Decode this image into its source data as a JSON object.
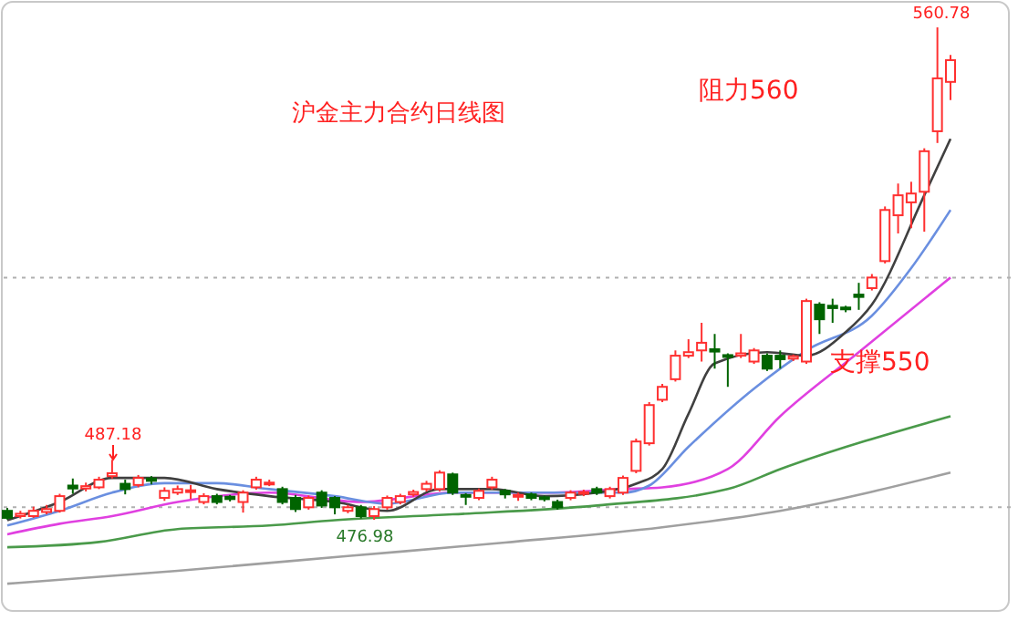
{
  "chart_data": {
    "type": "candlestick",
    "title": "沪金主力合约日线图",
    "annotations": [
      "阻力560",
      "支撑550",
      "560.78",
      "487.18",
      "476.98"
    ],
    "categories": [
      null,
      null,
      null,
      null,
      null,
      null,
      null,
      null,
      null,
      null,
      null,
      null,
      null,
      null,
      null,
      null,
      null,
      null,
      null,
      null,
      null,
      null,
      null,
      null,
      null,
      null,
      null,
      null,
      null,
      null,
      null,
      null,
      null,
      null,
      null,
      null,
      null,
      null,
      null,
      null,
      null,
      null,
      null,
      null,
      null,
      null,
      null,
      null,
      null,
      null,
      null,
      null,
      null,
      null,
      null,
      null,
      null,
      null,
      null,
      null,
      null,
      null,
      null,
      null,
      null,
      null,
      null,
      null,
      null,
      null,
      null,
      null,
      null
    ],
    "ohlc": [
      [
        478.5,
        479.0,
        477.0,
        477.3
      ],
      [
        477.6,
        478.5,
        477.2,
        478.0
      ],
      [
        477.6,
        479.2,
        477.3,
        478.5
      ],
      [
        478.3,
        479.5,
        477.9,
        478.8
      ],
      [
        478.5,
        481.4,
        478.2,
        481.0
      ],
      [
        482.8,
        484.0,
        481.4,
        482.3
      ],
      [
        482.3,
        483.3,
        481.8,
        482.7
      ],
      [
        482.5,
        484.3,
        482.2,
        483.8
      ],
      [
        484.4,
        487.18,
        484.0,
        484.9
      ],
      [
        483.1,
        483.8,
        481.3,
        482.2
      ],
      [
        482.9,
        484.6,
        482.5,
        484.1
      ],
      [
        484.0,
        484.4,
        483.0,
        483.6
      ],
      [
        480.7,
        482.5,
        480.2,
        481.9
      ],
      [
        481.6,
        482.8,
        481.2,
        482.2
      ],
      [
        481.7,
        482.9,
        480.5,
        482.0
      ],
      [
        480.0,
        481.5,
        479.6,
        481.0
      ],
      [
        481.0,
        481.4,
        479.6,
        480.0
      ],
      [
        480.9,
        481.2,
        480.1,
        480.5
      ],
      [
        480.0,
        482.0,
        478.2,
        481.6
      ],
      [
        482.5,
        484.3,
        482.1,
        483.8
      ],
      [
        483.0,
        483.8,
        482.7,
        483.3
      ],
      [
        482.2,
        482.6,
        479.6,
        480.0
      ],
      [
        480.7,
        481.2,
        478.3,
        478.8
      ],
      [
        479.1,
        481.1,
        478.7,
        480.7
      ],
      [
        481.6,
        482.0,
        479.0,
        479.4
      ],
      [
        480.7,
        481.0,
        477.9,
        479.1
      ],
      [
        478.5,
        479.5,
        478.1,
        479.1
      ],
      [
        479.1,
        479.5,
        477.2,
        477.6
      ],
      [
        477.6,
        479.3,
        476.98,
        478.8
      ],
      [
        479.1,
        481.1,
        478.7,
        480.7
      ],
      [
        480.0,
        481.4,
        479.6,
        481.0
      ],
      [
        481.3,
        482.1,
        480.9,
        481.7
      ],
      [
        482.2,
        483.6,
        481.8,
        483.1
      ],
      [
        482.2,
        485.4,
        481.8,
        485.0
      ],
      [
        484.7,
        485.0,
        481.2,
        481.6
      ],
      [
        481.2,
        481.5,
        479.5,
        480.9
      ],
      [
        480.7,
        482.3,
        480.3,
        481.9
      ],
      [
        482.5,
        484.3,
        482.1,
        483.8
      ],
      [
        481.9,
        482.2,
        480.6,
        481.3
      ],
      [
        480.9,
        481.6,
        480.2,
        481.2
      ],
      [
        481.3,
        481.6,
        480.3,
        480.7
      ],
      [
        480.8,
        481.1,
        480.1,
        480.5
      ],
      [
        480.0,
        480.4,
        478.7,
        479.1
      ],
      [
        480.7,
        482.0,
        480.3,
        481.6
      ],
      [
        481.4,
        482.1,
        481.0,
        481.7
      ],
      [
        482.2,
        482.6,
        481.2,
        481.6
      ],
      [
        481.0,
        482.6,
        480.6,
        482.2
      ],
      [
        481.6,
        484.5,
        481.2,
        484.1
      ],
      [
        485.3,
        490.8,
        484.9,
        490.3
      ],
      [
        490.0,
        497.0,
        489.6,
        496.5
      ],
      [
        497.4,
        500.1,
        497.0,
        499.6
      ],
      [
        500.9,
        505.8,
        500.5,
        504.9
      ],
      [
        504.9,
        507.7,
        504.5,
        505.5
      ],
      [
        505.8,
        510.5,
        503.9,
        507.1
      ],
      [
        506.0,
        508.6,
        502.7,
        505.6
      ],
      [
        505.0,
        505.3,
        499.6,
        504.7
      ],
      [
        504.9,
        508.6,
        504.5,
        505.3
      ],
      [
        503.9,
        506.2,
        503.5,
        505.8
      ],
      [
        504.9,
        505.3,
        502.3,
        502.7
      ],
      [
        504.9,
        505.8,
        502.7,
        504.3
      ],
      [
        504.4,
        505.1,
        504.0,
        504.8
      ],
      [
        503.9,
        514.6,
        503.5,
        514.2
      ],
      [
        513.6,
        514.0,
        508.6,
        511.1
      ],
      [
        513.4,
        514.6,
        510.5,
        513.0
      ],
      [
        513.1,
        513.4,
        512.3,
        512.8
      ],
      [
        515.3,
        517.3,
        512.7,
        514.9
      ],
      [
        516.4,
        518.8,
        516.0,
        518.2
      ],
      [
        521.0,
        530.3,
        520.6,
        529.7
      ],
      [
        528.8,
        534.2,
        525.7,
        532.2
      ],
      [
        531.0,
        534.5,
        526.6,
        532.5
      ],
      [
        532.8,
        540.2,
        526.0,
        539.7
      ],
      [
        543.1,
        560.78,
        541.1,
        552.1
      ],
      [
        551.5,
        556.1,
        548.4,
        555.2
      ]
    ],
    "series": [
      {
        "type": "line",
        "color": "#a0a0a0",
        "values": [
          466.1,
          null,
          null,
          null,
          null,
          null,
          null,
          null,
          null,
          null,
          null,
          null,
          null,
          468.3,
          null,
          null,
          null,
          null,
          null,
          null,
          null,
          null,
          null,
          null,
          null,
          null,
          470.8,
          null,
          null,
          null,
          null,
          null,
          null,
          null,
          null,
          null,
          null,
          null,
          473.1,
          null,
          null,
          null,
          null,
          null,
          null,
          null,
          null,
          null,
          null,
          null,
          475.7,
          null,
          null,
          null,
          null,
          null,
          null,
          null,
          null,
          478.5,
          null,
          null,
          null,
          null,
          null,
          null,
          null,
          null,
          null,
          null,
          null,
          null,
          485.0
        ]
      },
      {
        "type": "line",
        "color": "#4a9a4a",
        "values": [
          472.3,
          null,
          null,
          null,
          null,
          null,
          null,
          473.2,
          null,
          null,
          null,
          null,
          null,
          475.4,
          null,
          null,
          null,
          null,
          null,
          null,
          476.0,
          null,
          null,
          null,
          null,
          476.9,
          null,
          null,
          null,
          null,
          null,
          null,
          null,
          null,
          477.9,
          null,
          null,
          null,
          null,
          null,
          null,
          null,
          null,
          null,
          null,
          479.4,
          null,
          null,
          null,
          null,
          null,
          null,
          null,
          null,
          null,
          482.2,
          null,
          null,
          null,
          485.6,
          null,
          null,
          null,
          null,
          null,
          null,
          null,
          null,
          null,
          null,
          null,
          null,
          494.6
        ]
      },
      {
        "type": "line",
        "color": "#e040e0",
        "values": [
          474.5,
          null,
          null,
          null,
          476.3,
          null,
          null,
          null,
          477.6,
          null,
          null,
          null,
          null,
          480.0,
          null,
          null,
          null,
          null,
          null,
          null,
          481.6,
          null,
          null,
          null,
          null,
          null,
          null,
          480.0,
          null,
          null,
          null,
          null,
          null,
          null,
          481.6,
          null,
          null,
          null,
          null,
          null,
          null,
          481.6,
          null,
          null,
          null,
          null,
          null,
          482.2,
          null,
          null,
          482.5,
          null,
          null,
          null,
          null,
          485.6,
          null,
          null,
          null,
          494.6,
          null,
          null,
          null,
          null,
          null,
          505.5,
          null,
          null,
          null,
          null,
          null,
          null,
          518.2
        ]
      },
      {
        "type": "line",
        "color": "#6a8fe0",
        "values": [
          476.0,
          null,
          null,
          null,
          478.5,
          null,
          null,
          null,
          481.6,
          null,
          null,
          null,
          483.2,
          null,
          null,
          null,
          483.2,
          null,
          null,
          null,
          482.2,
          null,
          null,
          null,
          null,
          481.0,
          null,
          null,
          null,
          479.7,
          null,
          null,
          null,
          null,
          481.6,
          null,
          null,
          null,
          null,
          null,
          null,
          481.6,
          null,
          null,
          null,
          null,
          null,
          481.6,
          null,
          482.8,
          null,
          null,
          489.4,
          null,
          null,
          null,
          null,
          499.3,
          null,
          null,
          null,
          505.8,
          null,
          null,
          null,
          null,
          511.7,
          null,
          null,
          519.8,
          null,
          null,
          529.7
        ]
      },
      {
        "type": "line",
        "color": "#404040",
        "values": [
          476.9,
          null,
          null,
          null,
          480.0,
          null,
          null,
          null,
          484.1,
          null,
          null,
          null,
          484.1,
          null,
          null,
          null,
          482.2,
          null,
          null,
          null,
          481.0,
          null,
          null,
          null,
          null,
          480.0,
          null,
          null,
          null,
          478.5,
          null,
          null,
          null,
          482.2,
          null,
          null,
          null,
          482.2,
          null,
          null,
          null,
          481.0,
          null,
          null,
          null,
          481.6,
          null,
          null,
          483.1,
          null,
          485.6,
          null,
          495.0,
          null,
          503.6,
          null,
          null,
          null,
          505.5,
          null,
          null,
          504.9,
          null,
          null,
          508.9,
          null,
          513.6,
          null,
          null,
          null,
          532.2,
          null,
          541.8
        ]
      }
    ],
    "ref_lines": [
      {
        "axis": "y",
        "value": 518.2,
        "line_style": "dotted",
        "color": "#b0b0b0"
      },
      {
        "axis": "y",
        "value": 479.1,
        "line_style": "dotted",
        "color": "#b0b0b0"
      }
    ]
  }
}
